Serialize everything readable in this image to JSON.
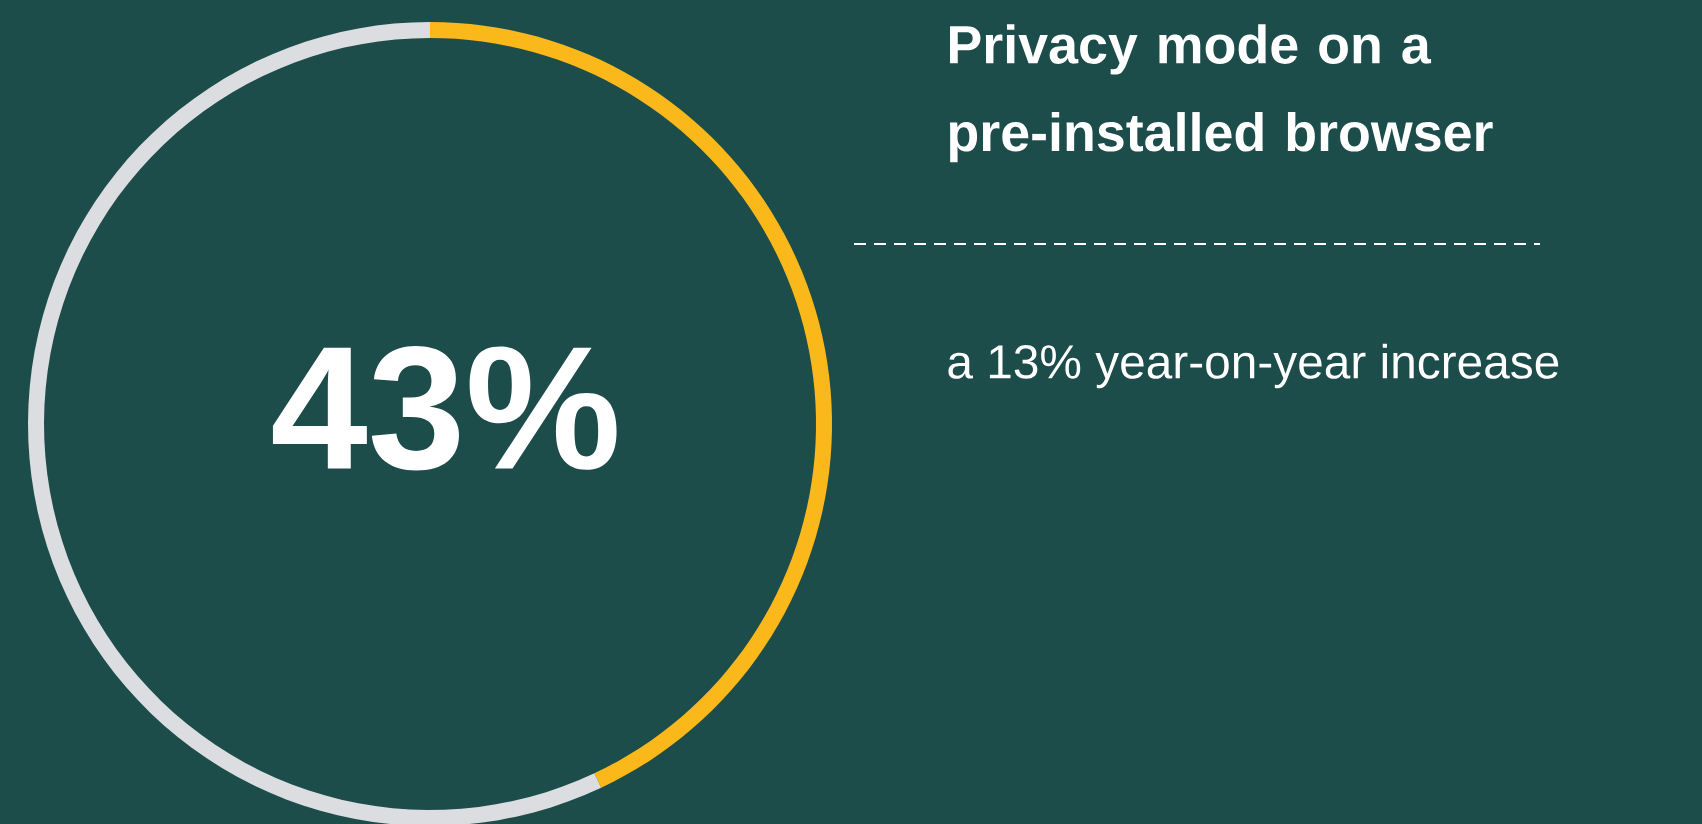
{
  "chart_data": {
    "type": "donut",
    "title": "Privacy mode on a pre-installed browser",
    "categories": [
      null,
      null
    ],
    "values": [
      43,
      57
    ],
    "colors": [
      "#fbb81b",
      "#dcdde0"
    ],
    "value_labels": [
      "43%",
      null
    ],
    "annotations": [
      "a 13% year-on-year increase"
    ]
  }
}
